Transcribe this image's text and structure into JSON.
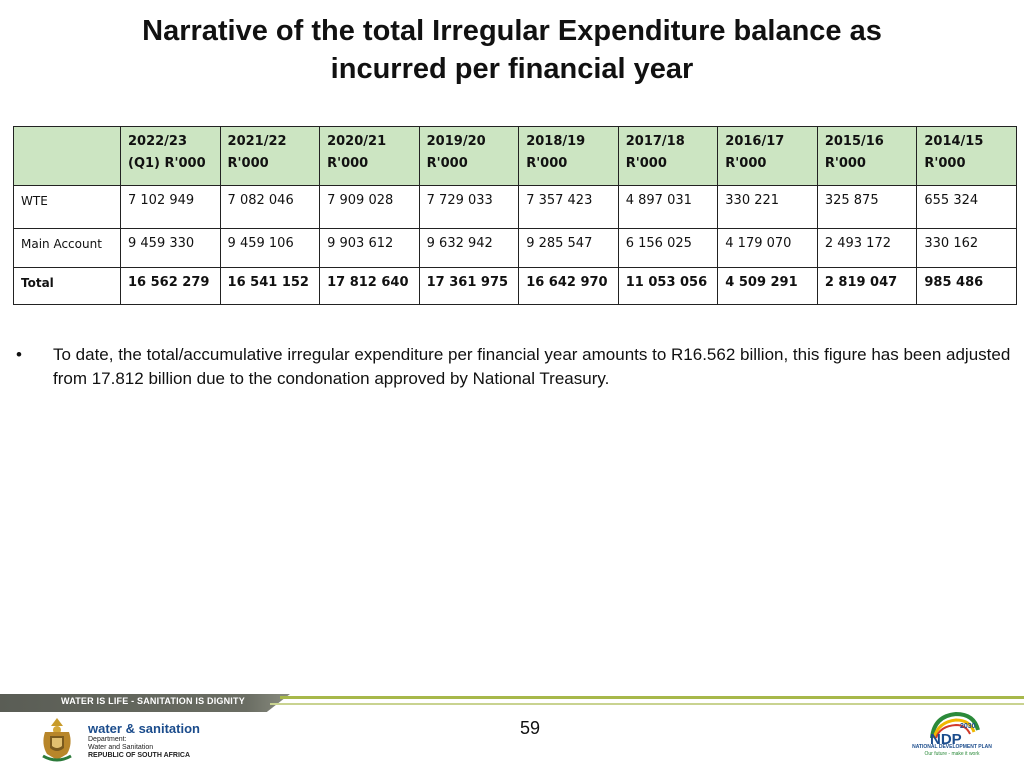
{
  "slide": {
    "title_line1": "Narrative of the total Irregular Expenditure balance as",
    "title_line2": "incurred per financial year",
    "bullet": "To date, the total/accumulative irregular expenditure per financial year amounts to R16.562 billion, this figure has been adjusted from 17.812 billion due to the condonation approved by National Treasury.",
    "page_number": "59"
  },
  "table": {
    "headers": [
      {
        "year": "2022/23",
        "unit": "(Q1) R'000"
      },
      {
        "year": "2021/22",
        "unit": "R'000"
      },
      {
        "year": "2020/21",
        "unit": "R'000"
      },
      {
        "year": "2019/20",
        "unit": "R'000"
      },
      {
        "year": "2018/19",
        "unit": "R'000"
      },
      {
        "year": "2017/18",
        "unit": "R'000"
      },
      {
        "year": "2016/17",
        "unit": "R'000"
      },
      {
        "year": "2015/16",
        "unit": "R'000"
      },
      {
        "year": "2014/15",
        "unit": "R'000"
      }
    ],
    "rows": [
      {
        "label": "WTE",
        "values": [
          "7 102 949",
          "7 082 046",
          "7 909 028",
          "7 729 033",
          "7 357 423",
          "4 897 031",
          "330 221",
          "325 875",
          "655 324"
        ]
      },
      {
        "label": "Main Account",
        "values": [
          "9 459 330",
          "9 459 106",
          "9 903 612",
          "9 632 942",
          "9 285 547",
          "6 156 025",
          "4 179 070",
          "2 493 172",
          "330 162"
        ]
      },
      {
        "label": "Total",
        "values": [
          "16 562 279",
          "16 541 152",
          "17 812 640",
          "17 361 975",
          "16 642 970",
          "11 053 056",
          "4 509 291",
          "2 819 047",
          "985 486"
        ]
      }
    ],
    "header_color": "#cce5c2"
  },
  "footer": {
    "slogan": "WATER IS LIFE - SANITATION IS DIGNITY",
    "dept_name": "water & sanitation",
    "dept_line1": "Department:",
    "dept_line2": "Water and Sanitation",
    "dept_line3": "REPUBLIC OF SOUTH AFRICA",
    "ndp_year": "2030",
    "ndp_abbr": "NDP",
    "ndp_name": "NATIONAL DEVELOPMENT PLAN",
    "ndp_tagline": "Our future - make it work",
    "brand_blue": "#1b4c8c",
    "strip_green": "#a7b84a"
  }
}
